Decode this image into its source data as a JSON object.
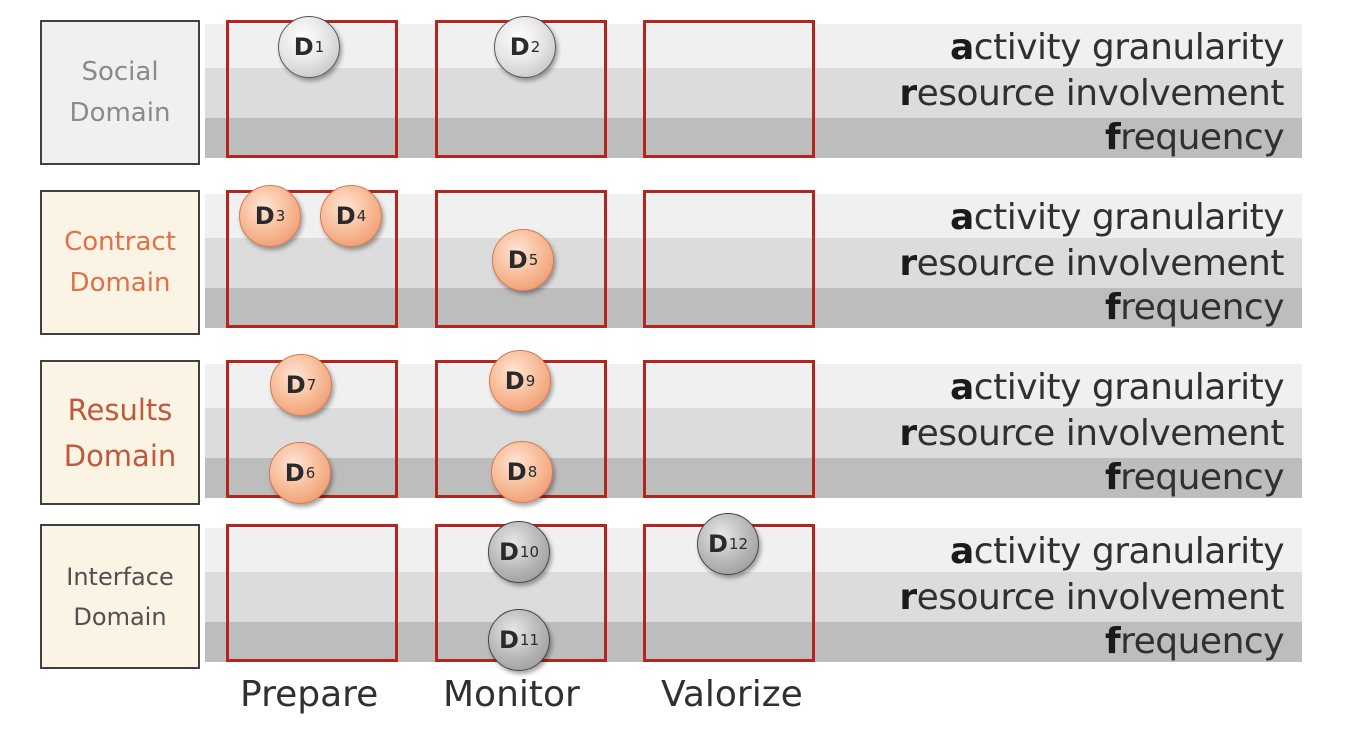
{
  "domains": [
    {
      "line1": "Social",
      "line2": "Domain"
    },
    {
      "line1": "Contract",
      "line2": "Domain"
    },
    {
      "line1": "Results",
      "line2": "Domain"
    },
    {
      "line1": "Interface",
      "line2": "Domain"
    }
  ],
  "phases": [
    "Prepare",
    "Monitor",
    "Valorize"
  ],
  "dimensions": [
    {
      "initial": "a",
      "rest": "ctivity granularity"
    },
    {
      "initial": "r",
      "rest": "esource involvement"
    },
    {
      "initial": "f",
      "rest": "requency"
    }
  ],
  "nodes": [
    {
      "letter": "D",
      "sub": "1"
    },
    {
      "letter": "D",
      "sub": "2"
    },
    {
      "letter": "D",
      "sub": "3"
    },
    {
      "letter": "D",
      "sub": "4"
    },
    {
      "letter": "D",
      "sub": "5"
    },
    {
      "letter": "D",
      "sub": "6"
    },
    {
      "letter": "D",
      "sub": "7"
    },
    {
      "letter": "D",
      "sub": "8"
    },
    {
      "letter": "D",
      "sub": "9"
    },
    {
      "letter": "D",
      "sub": "10"
    },
    {
      "letter": "D",
      "sub": "11"
    },
    {
      "letter": "D",
      "sub": "12"
    }
  ],
  "colors": {
    "cell_border": "#b3261e",
    "social": "#8a8a8a",
    "contract": "#e07048",
    "results": "#c0583a",
    "interface": "#505050"
  }
}
